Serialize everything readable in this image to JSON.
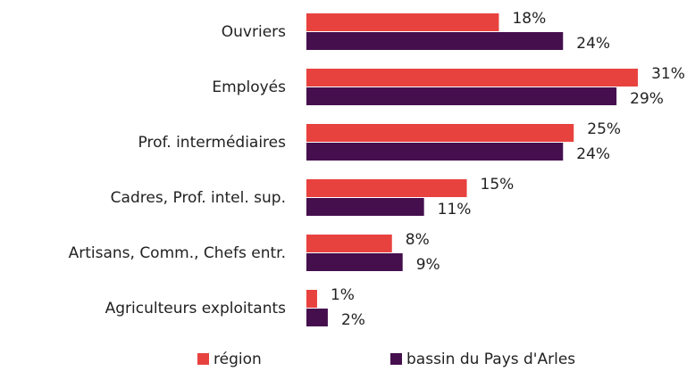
{
  "chart_data": {
    "type": "hbar",
    "categories": [
      "Ouvriers",
      "Employés",
      "Prof. intermédiaires",
      "Cadres, Prof. intel. sup.",
      "Artisans, Comm., Chefs entr.",
      "Agriculteurs exploitants"
    ],
    "series": [
      {
        "name": "région",
        "color": "#e8423f",
        "values": [
          18,
          31,
          25,
          15,
          8,
          1
        ],
        "value_labels": [
          "18%",
          "31%",
          "25%",
          "15%",
          "8%",
          "1%"
        ]
      },
      {
        "name": "bassin du Pays d'Arles",
        "color": "#450f4e",
        "values": [
          24,
          29,
          24,
          11,
          9,
          2
        ],
        "value_labels": [
          "24%",
          "29%",
          "24%",
          "11%",
          "9%",
          "2%"
        ]
      }
    ],
    "legend": "bottom"
  }
}
